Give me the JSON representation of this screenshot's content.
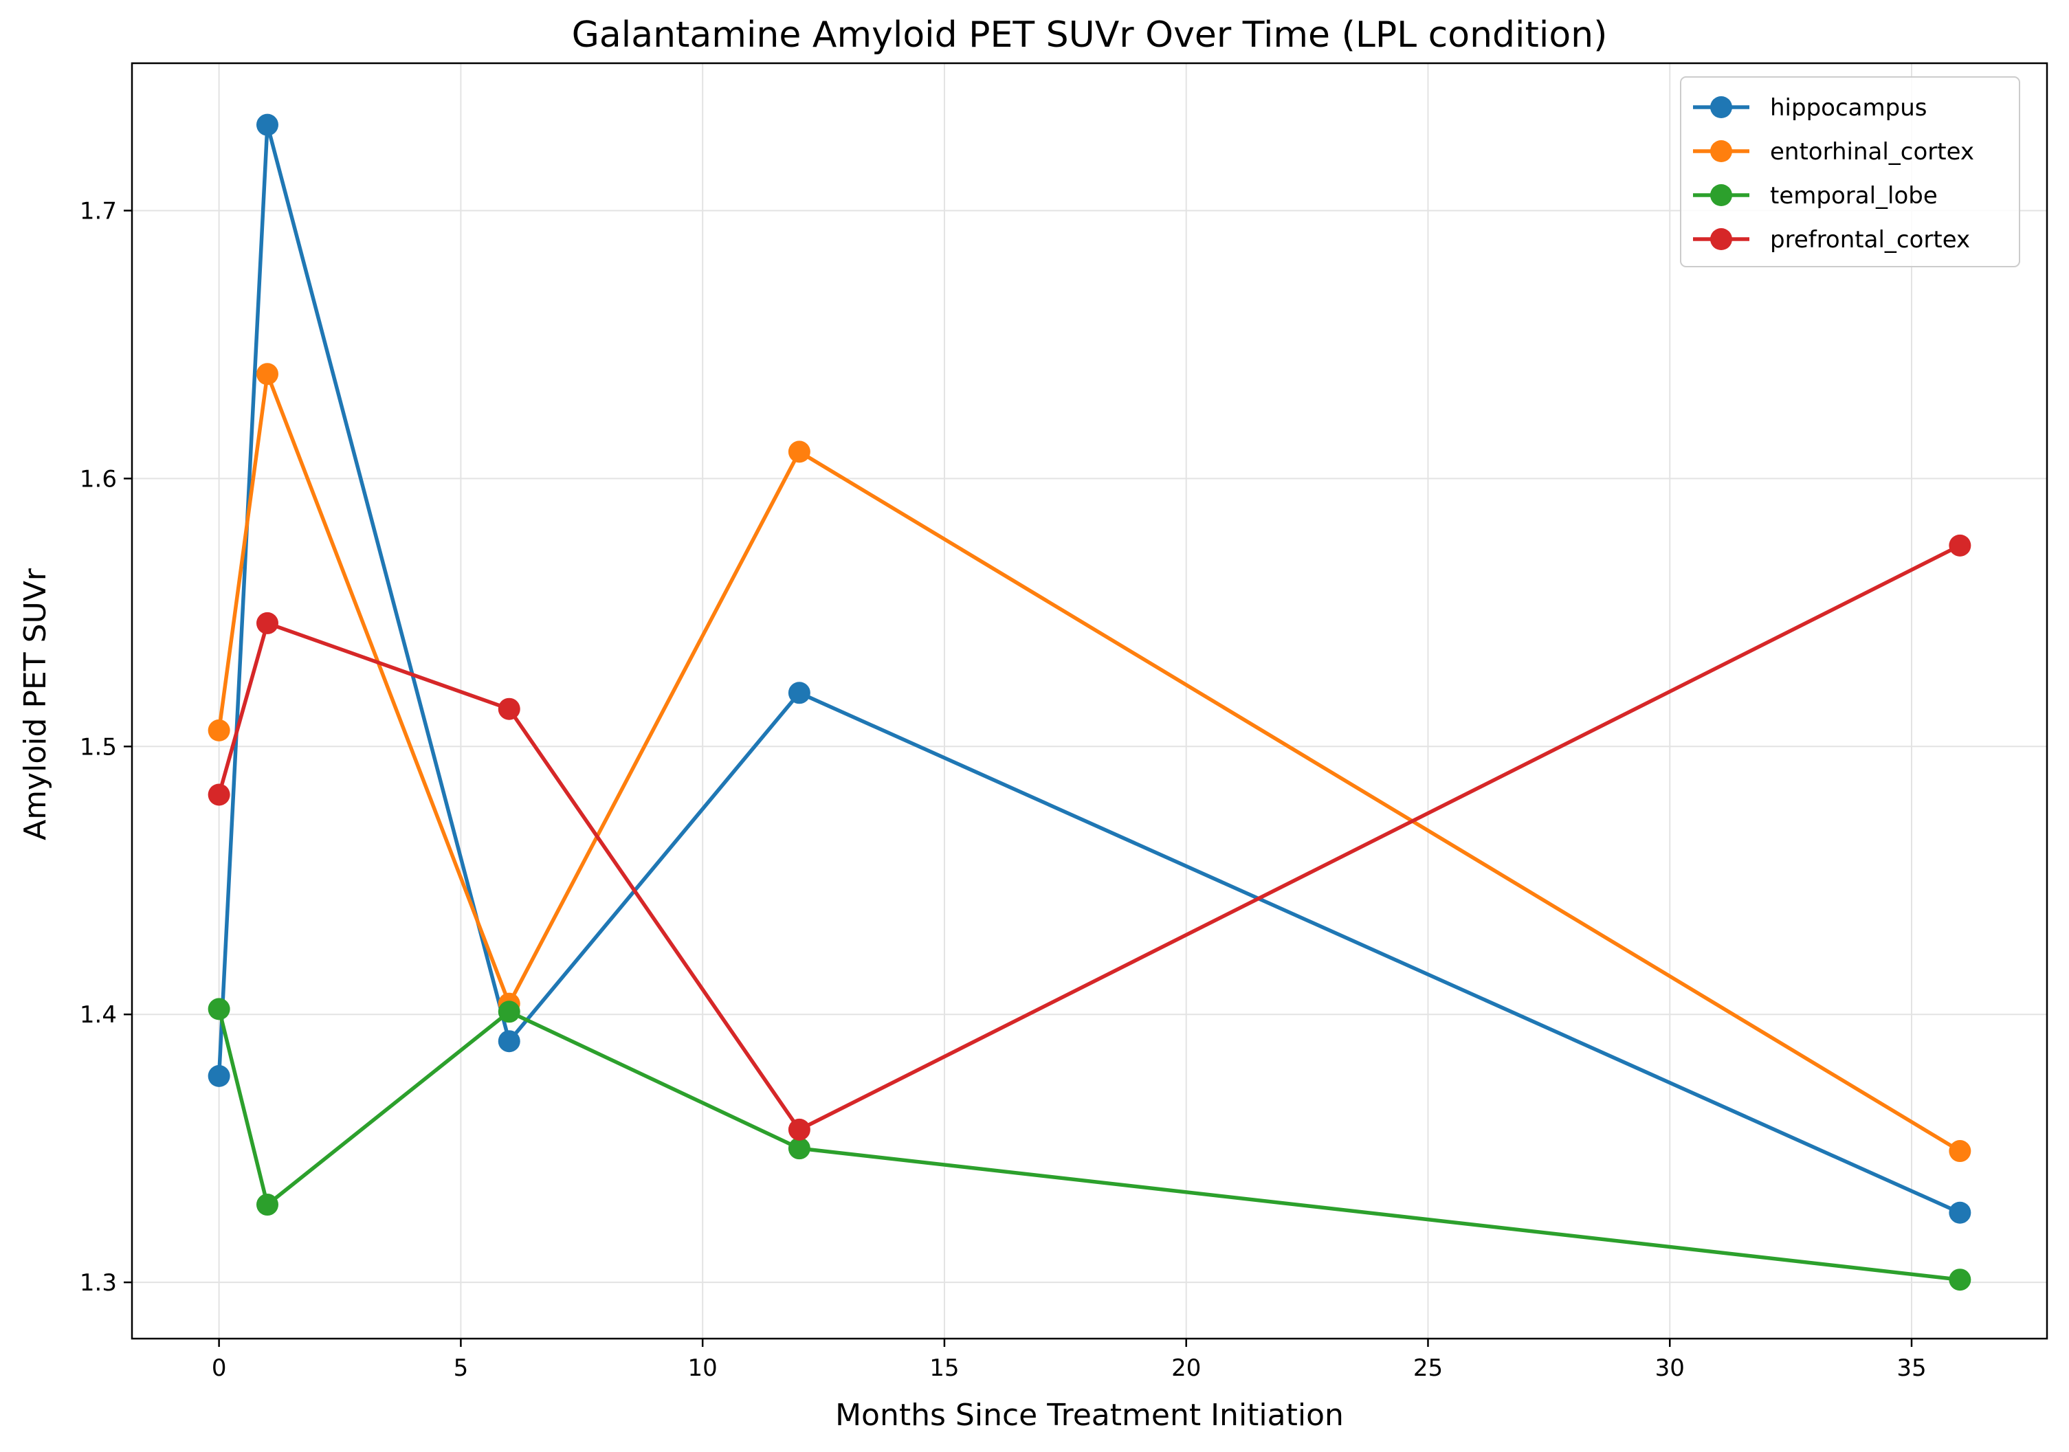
{
  "chart_data": {
    "type": "line",
    "title": "Galantamine Amyloid PET SUVr Over Time (LPL condition)",
    "xlabel": "Months Since Treatment Initiation",
    "ylabel": "Amyloid PET SUVr",
    "x": [
      0,
      1,
      6,
      12,
      36
    ],
    "xlim": [
      -1.8,
      37.8
    ],
    "ylim": [
      1.279,
      1.755
    ],
    "xticks": [
      0,
      5,
      10,
      15,
      20,
      25,
      30,
      35
    ],
    "yticks": [
      1.3,
      1.4,
      1.5,
      1.6,
      1.7
    ],
    "xtick_labels": [
      "0",
      "5",
      "10",
      "15",
      "20",
      "25",
      "30",
      "35"
    ],
    "ytick_labels": [
      "1.3",
      "1.4",
      "1.5",
      "1.6",
      "1.7"
    ],
    "grid": true,
    "legend_position": "top-right",
    "series": [
      {
        "name": "hippocampus",
        "color": "#1f77b4",
        "values": [
          1.377,
          1.732,
          1.39,
          1.52,
          1.326
        ]
      },
      {
        "name": "entorhinal_cortex",
        "color": "#ff7f0e",
        "values": [
          1.506,
          1.639,
          1.404,
          1.61,
          1.349
        ]
      },
      {
        "name": "temporal_lobe",
        "color": "#2ca02c",
        "values": [
          1.402,
          1.329,
          1.401,
          1.35,
          1.301
        ]
      },
      {
        "name": "prefrontal_cortex",
        "color": "#d62728",
        "values": [
          1.482,
          1.546,
          1.514,
          1.357,
          1.575
        ]
      }
    ]
  }
}
